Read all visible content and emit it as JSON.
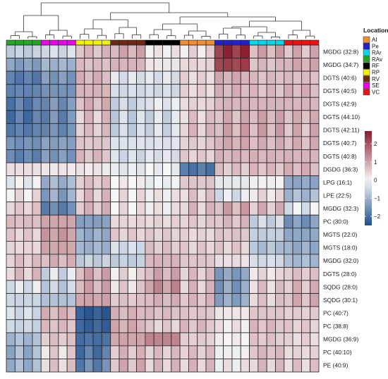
{
  "chart_data": {
    "type": "heatmap",
    "row_labels": [
      "MGDG (32:8)",
      "MGDG (34:7)",
      "DGTS (40:6)",
      "DGTS (40:5)",
      "DGTS (42:9)",
      "DGTS (44:10)",
      "DGTS (42:11)",
      "DGTS (40:7)",
      "DGTS (40:8)",
      "DGDG (36:3)",
      "LPG (16:1)",
      "LPE (22:5)",
      "MGDG (32:3)",
      "PC (30:0)",
      "MGTS (22:0)",
      "MGTS (18:0)",
      "MGDG (32:0)",
      "DGTS (28:0)",
      "SQDG (28:0)",
      "SQDG (30:1)",
      "PC (40:7)",
      "PC (38:8)",
      "MGDG (36:9)",
      "PC (40:10)",
      "PE (40:9)"
    ],
    "column_groups": [
      {
        "location": "RAv",
        "count": 4
      },
      {
        "location": "SE",
        "count": 4
      },
      {
        "location": "RP",
        "count": 4
      },
      {
        "location": "RV",
        "count": 4
      },
      {
        "location": "RF",
        "count": 4
      },
      {
        "location": "AI",
        "count": 4
      },
      {
        "location": "Pe",
        "count": 4
      },
      {
        "location": "RAr",
        "count": 4
      },
      {
        "location": "VC",
        "count": 4
      }
    ],
    "legend": {
      "title": "Location",
      "items": [
        {
          "label": "AI",
          "color": "#f28c33"
        },
        {
          "label": "Pe",
          "color": "#1f1fd6"
        },
        {
          "label": "RAr",
          "color": "#00d7e8"
        },
        {
          "label": "RAv",
          "color": "#22a722"
        },
        {
          "label": "RF",
          "color": "#000000"
        },
        {
          "label": "RP",
          "color": "#f2f200"
        },
        {
          "label": "RV",
          "color": "#6e2a10"
        },
        {
          "label": "SE",
          "color": "#ee00ee"
        },
        {
          "label": "VC",
          "color": "#ee1111"
        }
      ]
    },
    "color_scale": {
      "min": -2.5,
      "max": 2.7,
      "ticks": [
        2,
        1,
        0,
        -1,
        -2
      ],
      "low": "#1f4f8f",
      "mid": "#f7f7f7",
      "high": "#8b1a2b"
    },
    "group_values": [
      [
        -0.6,
        -0.4,
        0.7,
        0.9,
        0.1,
        0.3,
        2.4,
        0.9,
        0.8
      ],
      [
        -1.3,
        -1.0,
        0.7,
        0.8,
        0.2,
        0.4,
        2.2,
        0.7,
        0.9
      ],
      [
        -1.8,
        -1.4,
        0.8,
        -0.3,
        -0.3,
        0.4,
        0.9,
        0.7,
        0.7
      ],
      [
        -1.7,
        -1.5,
        0.8,
        -0.4,
        -0.4,
        0.4,
        0.8,
        0.7,
        0.8
      ],
      [
        -1.8,
        -1.5,
        0.8,
        -0.5,
        -0.2,
        0.4,
        0.8,
        0.8,
        0.8
      ],
      [
        -1.9,
        -1.6,
        0.6,
        -0.5,
        -0.4,
        0.5,
        0.8,
        0.9,
        0.8
      ],
      [
        -1.8,
        -1.6,
        0.6,
        -0.5,
        -0.4,
        0.6,
        0.9,
        0.9,
        0.8
      ],
      [
        -1.5,
        -1.3,
        0.6,
        -0.3,
        -0.3,
        0.5,
        0.9,
        0.8,
        0.8
      ],
      [
        -1.7,
        -1.4,
        0.7,
        -0.4,
        -0.3,
        0.5,
        0.8,
        0.8,
        0.8
      ],
      [
        0.3,
        0.2,
        0.2,
        -0.2,
        -0.1,
        -1.9,
        0.6,
        0.7,
        0.8
      ],
      [
        -0.1,
        -1.0,
        0.6,
        0.1,
        -0.1,
        0.6,
        -0.2,
        0.1,
        -1.2
      ],
      [
        0.2,
        -1.2,
        0.6,
        0.2,
        0.1,
        0.5,
        -0.3,
        0.3,
        -0.9
      ],
      [
        0.5,
        -1.7,
        0.7,
        0.2,
        0.1,
        0.6,
        0.9,
        0.7,
        -0.2
      ],
      [
        0.7,
        1.0,
        -1.3,
        0.4,
        0.4,
        0.5,
        0.7,
        -0.5,
        -1.4
      ],
      [
        0.5,
        1.1,
        -1.1,
        0.5,
        0.5,
        0.4,
        0.6,
        -0.6,
        -1.2
      ],
      [
        0.4,
        1.0,
        -1.0,
        -0.4,
        0.6,
        0.5,
        0.5,
        -0.8,
        -1.1
      ],
      [
        0.6,
        0.8,
        -0.6,
        -0.6,
        0.8,
        0.6,
        0.3,
        -0.4,
        -0.9
      ],
      [
        0.6,
        -0.4,
        0.9,
        0.3,
        0.9,
        0.6,
        -1.3,
        0.3,
        0.6
      ],
      [
        -0.3,
        -0.6,
        0.9,
        0.4,
        1.2,
        0.6,
        -1.3,
        0.5,
        0.7
      ],
      [
        -0.5,
        -0.8,
        1.0,
        0.6,
        0.8,
        0.7,
        -1.2,
        0.5,
        0.8
      ],
      [
        -0.4,
        0.8,
        -2.3,
        0.8,
        0.7,
        0.6,
        0.2,
        0.6,
        0.5
      ],
      [
        -0.5,
        0.7,
        -2.2,
        0.9,
        0.5,
        0.7,
        0.2,
        0.7,
        0.5
      ],
      [
        -0.9,
        0.6,
        -2.0,
        1.0,
        1.4,
        0.5,
        0.1,
        0.6,
        0.4
      ],
      [
        -1.0,
        0.4,
        -1.9,
        0.7,
        0.6,
        0.6,
        0.0,
        0.7,
        0.4
      ],
      [
        -1.0,
        0.5,
        -1.7,
        0.8,
        0.6,
        0.6,
        0.1,
        0.6,
        0.5
      ]
    ]
  }
}
